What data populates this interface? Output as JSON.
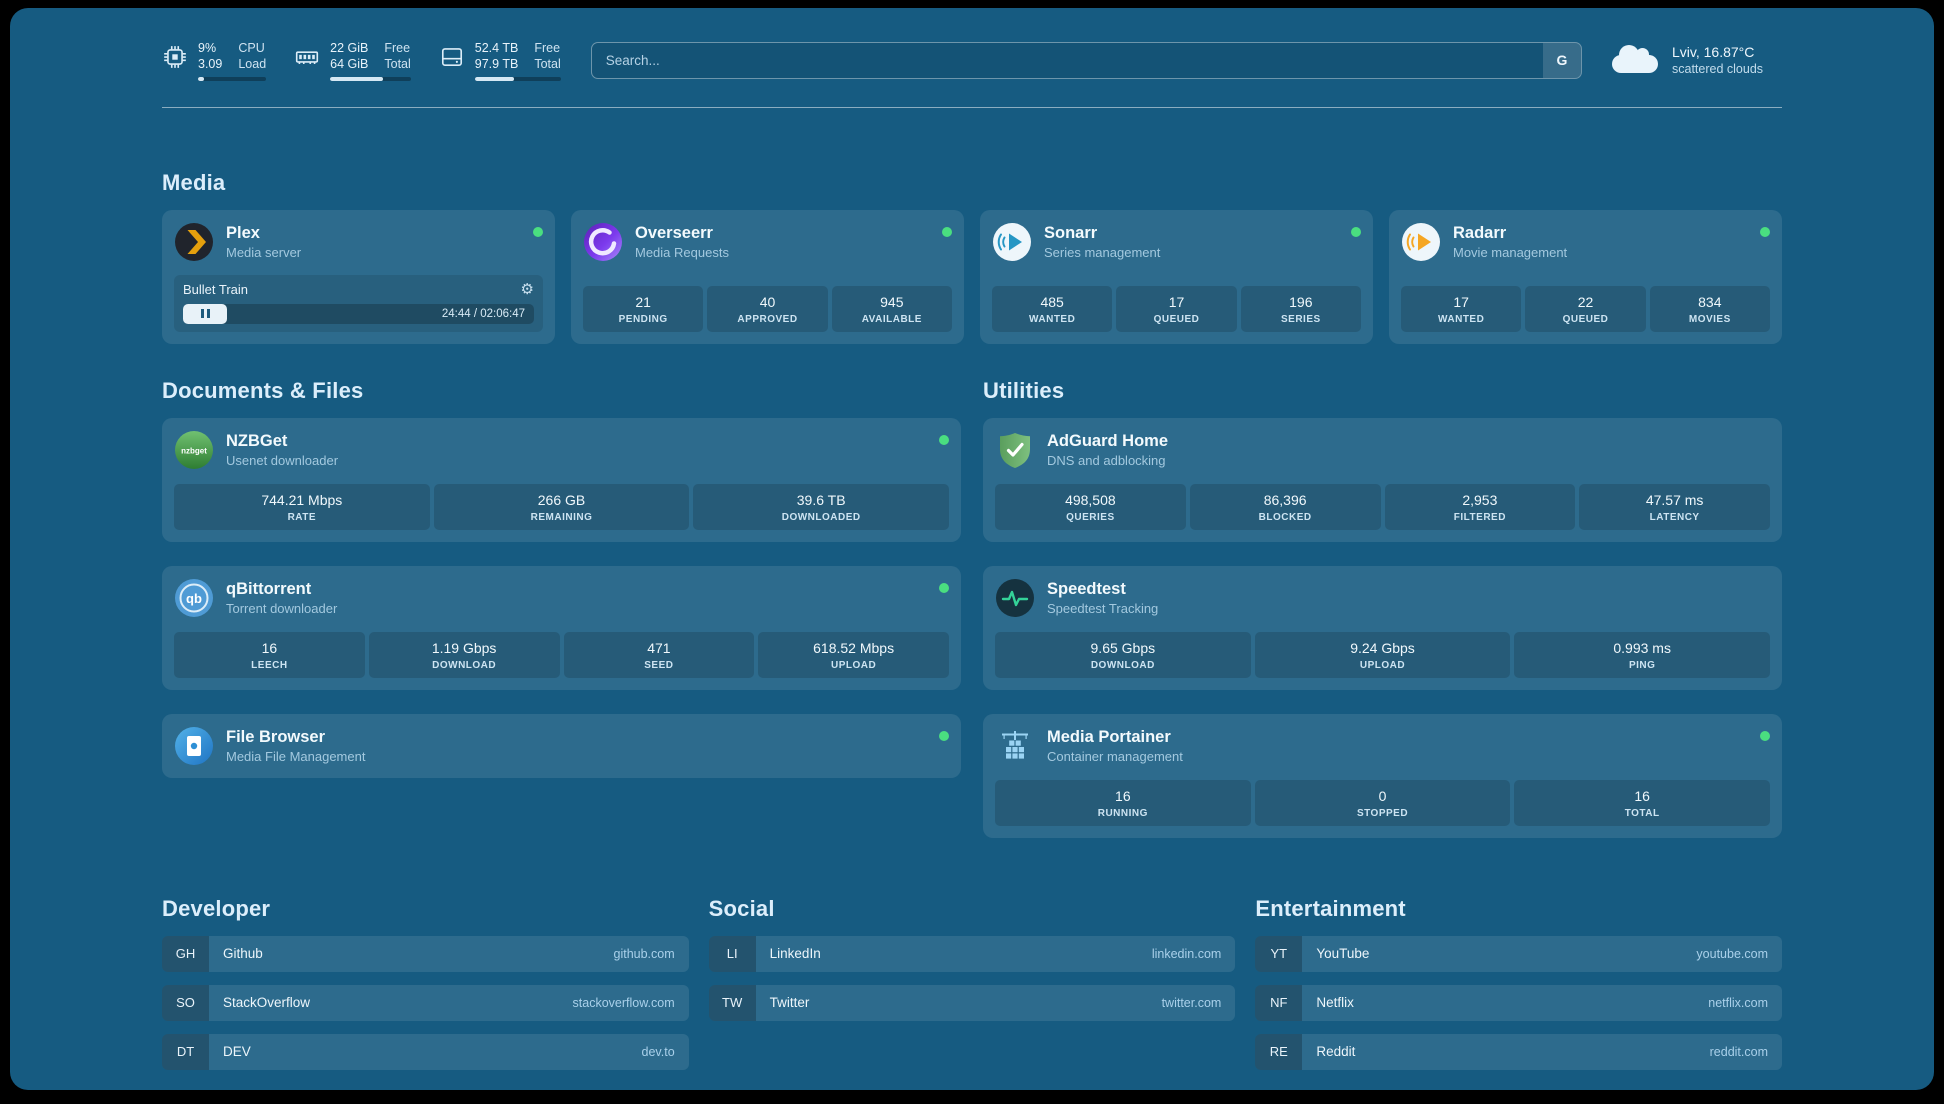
{
  "colors": {
    "status_online": "#4ade80",
    "plex_amber": "#e5a00d",
    "background": "#165b81"
  },
  "topbar": {
    "resources": [
      {
        "icon": "cpu-icon",
        "value_top": "9%",
        "value_bottom": "3.09",
        "label_top": "CPU",
        "label_bottom": "Load",
        "progress_pct": 9
      },
      {
        "icon": "memory-icon",
        "value_top": "22 GiB",
        "value_bottom": "64 GiB",
        "label_top": "Free",
        "label_bottom": "Total",
        "progress_pct": 66
      },
      {
        "icon": "disk-icon",
        "value_top": "52.4 TB",
        "value_bottom": "97.9 TB",
        "label_top": "Free",
        "label_bottom": "Total",
        "progress_pct": 46
      }
    ],
    "search": {
      "placeholder": "Search...",
      "button_label": "G"
    },
    "weather": {
      "location": "Lviv, 16.87°C",
      "condition": "scattered clouds"
    }
  },
  "sections": {
    "media": "Media",
    "documents": "Documents & Files",
    "utilities": "Utilities",
    "developer": "Developer",
    "social": "Social",
    "entertainment": "Entertainment"
  },
  "services": {
    "plex": {
      "name": "Plex",
      "subtitle": "Media server",
      "player": {
        "title": "Bullet Train",
        "time": "24:44 / 02:06:47",
        "progress_pct": 20
      }
    },
    "overseerr": {
      "name": "Overseerr",
      "subtitle": "Media Requests",
      "stats": [
        {
          "value": "21",
          "label": "PENDING"
        },
        {
          "value": "40",
          "label": "APPROVED"
        },
        {
          "value": "945",
          "label": "AVAILABLE"
        }
      ]
    },
    "sonarr": {
      "name": "Sonarr",
      "subtitle": "Series management",
      "stats": [
        {
          "value": "485",
          "label": "WANTED"
        },
        {
          "value": "17",
          "label": "QUEUED"
        },
        {
          "value": "196",
          "label": "SERIES"
        }
      ]
    },
    "radarr": {
      "name": "Radarr",
      "subtitle": "Movie management",
      "stats": [
        {
          "value": "17",
          "label": "WANTED"
        },
        {
          "value": "22",
          "label": "QUEUED"
        },
        {
          "value": "834",
          "label": "MOVIES"
        }
      ]
    },
    "nzbget": {
      "name": "NZBGet",
      "subtitle": "Usenet downloader",
      "icon_text": "nzbget",
      "stats": [
        {
          "value": "744.21 Mbps",
          "label": "RATE"
        },
        {
          "value": "266 GB",
          "label": "REMAINING"
        },
        {
          "value": "39.6 TB",
          "label": "DOWNLOADED"
        }
      ]
    },
    "qbittorrent": {
      "name": "qBittorrent",
      "subtitle": "Torrent downloader",
      "icon_text": "qb",
      "stats": [
        {
          "value": "16",
          "label": "LEECH"
        },
        {
          "value": "1.19 Gbps",
          "label": "DOWNLOAD"
        },
        {
          "value": "471",
          "label": "SEED"
        },
        {
          "value": "618.52 Mbps",
          "label": "UPLOAD"
        }
      ]
    },
    "filebrowser": {
      "name": "File Browser",
      "subtitle": "Media File Management"
    },
    "adguard": {
      "name": "AdGuard Home",
      "subtitle": "DNS and adblocking",
      "stats": [
        {
          "value": "498,508",
          "label": "QUERIES"
        },
        {
          "value": "86,396",
          "label": "BLOCKED"
        },
        {
          "value": "2,953",
          "label": "FILTERED"
        },
        {
          "value": "47.57 ms",
          "label": "LATENCY"
        }
      ]
    },
    "speedtest": {
      "name": "Speedtest",
      "subtitle": "Speedtest Tracking",
      "stats": [
        {
          "value": "9.65 Gbps",
          "label": "DOWNLOAD"
        },
        {
          "value": "9.24 Gbps",
          "label": "UPLOAD"
        },
        {
          "value": "0.993 ms",
          "label": "PING"
        }
      ]
    },
    "portainer": {
      "name": "Media Portainer",
      "subtitle": "Container management",
      "stats": [
        {
          "value": "16",
          "label": "RUNNING"
        },
        {
          "value": "0",
          "label": "STOPPED"
        },
        {
          "value": "16",
          "label": "TOTAL"
        }
      ]
    }
  },
  "bookmarks": {
    "developer": [
      {
        "abbr": "GH",
        "name": "Github",
        "url": "github.com"
      },
      {
        "abbr": "SO",
        "name": "StackOverflow",
        "url": "stackoverflow.com"
      },
      {
        "abbr": "DT",
        "name": "DEV",
        "url": "dev.to"
      }
    ],
    "social": [
      {
        "abbr": "LI",
        "name": "LinkedIn",
        "url": "linkedin.com"
      },
      {
        "abbr": "TW",
        "name": "Twitter",
        "url": "twitter.com"
      }
    ],
    "entertainment": [
      {
        "abbr": "YT",
        "name": "YouTube",
        "url": "youtube.com"
      },
      {
        "abbr": "NF",
        "name": "Netflix",
        "url": "netflix.com"
      },
      {
        "abbr": "RE",
        "name": "Reddit",
        "url": "reddit.com"
      }
    ]
  }
}
